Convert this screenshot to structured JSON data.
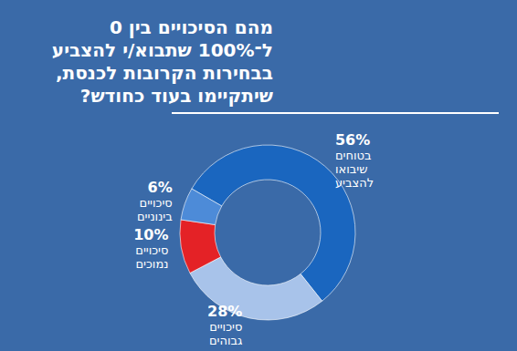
{
  "chart_data": {
    "type": "donut",
    "title": "מהם הסיכויים בין 0\nל־100% שתבוא/י להצביע\nבבחירות הקרובות לכנסת,\nשיתקיימו בעוד כחודש?",
    "categories": [
      "בטוחים\nשיבואו\nלהצביע",
      "סיכויים\nגבוהים",
      "סיכויים\nנמוכים",
      "סיכויים\nבינוניים"
    ],
    "values": [
      56,
      28,
      10,
      6
    ],
    "value_labels": [
      "56%",
      "28%",
      "10%",
      "6%"
    ],
    "colors": [
      "#1a66bf",
      "#a8c3ea",
      "#e42226",
      "#4d8bd8"
    ],
    "data_labels": true
  }
}
